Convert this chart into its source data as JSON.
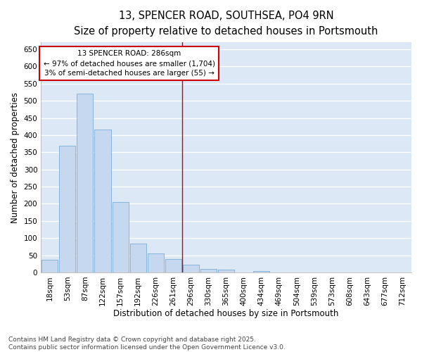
{
  "title": "13, SPENCER ROAD, SOUTHSEA, PO4 9RN",
  "subtitle": "Size of property relative to detached houses in Portsmouth",
  "xlabel": "Distribution of detached houses by size in Portsmouth",
  "ylabel": "Number of detached properties",
  "categories": [
    "18sqm",
    "53sqm",
    "87sqm",
    "122sqm",
    "157sqm",
    "192sqm",
    "226sqm",
    "261sqm",
    "296sqm",
    "330sqm",
    "365sqm",
    "400sqm",
    "434sqm",
    "469sqm",
    "504sqm",
    "539sqm",
    "573sqm",
    "608sqm",
    "643sqm",
    "677sqm",
    "712sqm"
  ],
  "values": [
    37,
    370,
    520,
    417,
    205,
    85,
    55,
    38,
    22,
    10,
    8,
    0,
    5,
    0,
    0,
    0,
    0,
    0,
    0,
    0,
    0
  ],
  "bar_color": "#c5d8f0",
  "bar_edge_color": "#7aadd4",
  "plot_bg_color": "#dce8f5",
  "figure_bg_color": "#ffffff",
  "grid_color": "#ffffff",
  "vline_x_idx": 8,
  "vline_color": "#cc0000",
  "annotation_title": "13 SPENCER ROAD: 286sqm",
  "annotation_line1": "← 97% of detached houses are smaller (1,704)",
  "annotation_line2": "3% of semi-detached houses are larger (55) →",
  "annotation_box_color": "#ffffff",
  "annotation_border_color": "#cc0000",
  "ylim": [
    0,
    670
  ],
  "yticks": [
    0,
    50,
    100,
    150,
    200,
    250,
    300,
    350,
    400,
    450,
    500,
    550,
    600,
    650
  ],
  "footer_line1": "Contains HM Land Registry data © Crown copyright and database right 2025.",
  "footer_line2": "Contains public sector information licensed under the Open Government Licence v3.0.",
  "title_fontsize": 10.5,
  "subtitle_fontsize": 9.5,
  "axis_label_fontsize": 8.5,
  "tick_fontsize": 7.5,
  "annotation_fontsize": 7.5,
  "footer_fontsize": 6.5
}
